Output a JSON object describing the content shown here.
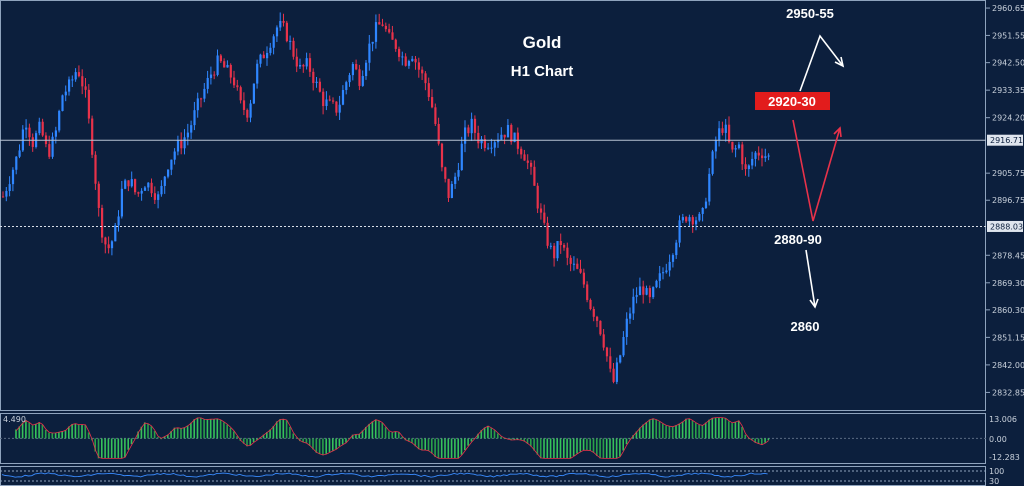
{
  "chart_data": {
    "type": "candlestick",
    "title": "Gold",
    "subtitle": "H1 Chart",
    "ylim": [
      2828,
      2962
    ],
    "y_ticks": [
      "2960.65",
      "2951.55",
      "2942.50",
      "2933.35",
      "2924.20",
      "2905.75",
      "2896.75",
      "2878.45",
      "2869.30",
      "2860.30",
      "2851.15",
      "2842.00",
      "2832.85"
    ],
    "current_price_label": "2916.71",
    "current_price": 2916.71,
    "support_price_label": "2888.03",
    "support_price": 2888.03,
    "colors": {
      "up": "#2f86ff",
      "down": "#e8324a",
      "background": "#0c1f3d",
      "grid": "#ffffff"
    },
    "price_path": [
      2898,
      2905,
      2912,
      2924,
      2916,
      2921,
      2912,
      2918,
      2932,
      2935,
      2941,
      2933,
      2914,
      2890,
      2880,
      2885,
      2900,
      2904,
      2898,
      2903,
      2901,
      2897,
      2908,
      2913,
      2916,
      2920,
      2927,
      2933,
      2939,
      2943,
      2940,
      2937,
      2928,
      2926,
      2940,
      2945,
      2950,
      2955,
      2953,
      2946,
      2940,
      2942,
      2936,
      2930,
      2928,
      2927,
      2935,
      2942,
      2937,
      2946,
      2953,
      2956,
      2950,
      2948,
      2943,
      2946,
      2940,
      2935,
      2925,
      2907,
      2898,
      2906,
      2918,
      2922,
      2917,
      2916,
      2917,
      2919,
      2920,
      2916,
      2913,
      2906,
      2895,
      2885,
      2878,
      2883,
      2876,
      2874,
      2870,
      2862,
      2857,
      2848,
      2835,
      2845,
      2857,
      2865,
      2868,
      2863,
      2869,
      2874,
      2880,
      2888,
      2892,
      2891,
      2890,
      2905,
      2918,
      2922,
      2912,
      2915,
      2905,
      2912,
      2913,
      2911
    ],
    "annotations": [
      {
        "text": "2950-55",
        "price": 2955
      },
      {
        "text": "2920-30",
        "price": 2934
      },
      {
        "text": "2880-90",
        "price": 2886
      },
      {
        "text": "2860",
        "price": 2859
      }
    ],
    "oscillator": {
      "top_left_label": "4.490",
      "y_ticks": [
        "13.006",
        "0.00",
        "-12.283"
      ],
      "ylim": [
        -13.5,
        14
      ]
    },
    "rsi_panel": {
      "y_ticks": [
        "100",
        "30"
      ]
    }
  }
}
